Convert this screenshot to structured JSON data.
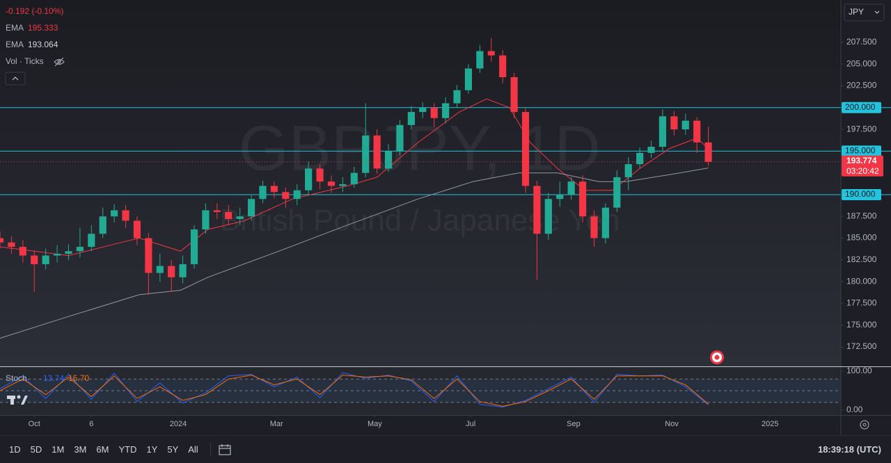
{
  "chart_data": [
    {
      "type": "candlestick",
      "title": "GBPJPY, 1D",
      "subtitle": "British Pound / Japanese Yen",
      "change": "-0.192 (-0.10%)",
      "volume_label": "Vol · Ticks",
      "currency": "JPY",
      "up_color": "#22ab94",
      "down_color": "#f23645",
      "x": [
        0,
        5,
        10,
        15,
        20,
        25,
        30,
        35,
        40,
        45,
        50,
        55,
        60,
        65,
        70,
        75,
        80,
        85,
        90,
        95,
        100,
        105,
        110,
        115,
        120,
        125,
        130,
        135,
        140,
        145,
        150,
        155,
        160,
        165,
        170,
        175,
        180,
        185,
        190,
        195,
        200,
        205,
        210,
        215,
        220,
        225,
        230,
        235,
        240,
        245,
        250,
        255,
        260,
        265,
        270,
        275,
        280,
        285,
        290,
        295,
        300,
        305,
        310
      ],
      "open": [
        185,
        184.5,
        184,
        183,
        182,
        183,
        183.2,
        183.5,
        184,
        185.5,
        187.5,
        188.2,
        187,
        185,
        181,
        181.8,
        180.5,
        182,
        186,
        188.2,
        188,
        187.2,
        187.5,
        189.5,
        191,
        190.3,
        189.5,
        190.5,
        193,
        191.5,
        191,
        191.2,
        192.5,
        196.8,
        193,
        195,
        198,
        199.5,
        200,
        198.8,
        200.5,
        202,
        204.5,
        206.5,
        206,
        203.5,
        199.5,
        191,
        185.5,
        189.5,
        190,
        191.5,
        187.5,
        185,
        188.5,
        192,
        193.5,
        194.8,
        195.5,
        199,
        197.5,
        198.5,
        196
      ],
      "high": [
        185.8,
        185.2,
        184.8,
        183.6,
        183.8,
        184.2,
        184.3,
        186.2,
        186.5,
        188.5,
        188.9,
        188.8,
        187.5,
        185.6,
        183.2,
        182.5,
        183,
        186.5,
        189,
        189,
        188.8,
        188.5,
        190,
        191.6,
        191.5,
        190.8,
        191.2,
        193.8,
        193.5,
        192.2,
        192,
        193.2,
        200.5,
        197.5,
        195.8,
        198.6,
        200.2,
        200.6,
        200.5,
        201.2,
        202.6,
        205,
        207.2,
        208,
        206.6,
        204,
        200,
        191.6,
        190.2,
        191.5,
        192,
        192.2,
        188.2,
        189,
        192.8,
        194.3,
        195.4,
        196.2,
        199.8,
        199.6,
        199.3,
        198.9,
        197.8
      ],
      "low": [
        183.8,
        183.2,
        182.2,
        178.8,
        181.4,
        182.2,
        182.5,
        182.8,
        183.5,
        185,
        186.8,
        186.2,
        184.2,
        178.5,
        180,
        178.8,
        179.8,
        181.5,
        185.5,
        187.2,
        186.5,
        186.5,
        187,
        189,
        189.6,
        188.5,
        188.8,
        190,
        190.6,
        190.2,
        190.3,
        190.8,
        192,
        192.4,
        192.6,
        194.5,
        197.5,
        198.8,
        197.8,
        198.2,
        200,
        201.6,
        204,
        205.3,
        202.8,
        198.8,
        190.2,
        180.2,
        184.8,
        188.6,
        189.4,
        186.8,
        184,
        184.4,
        188,
        190.5,
        193,
        194.2,
        195,
        196.8,
        196.9,
        194.8,
        193.3
      ],
      "close": [
        184.5,
        184,
        183,
        182,
        183,
        183.2,
        183.5,
        184,
        185.5,
        187.5,
        188.2,
        187,
        185,
        181,
        181.8,
        180.5,
        182,
        186,
        188.2,
        188,
        187.2,
        187.5,
        189.5,
        191,
        190.3,
        189.5,
        190.5,
        193,
        191.5,
        191,
        191.2,
        192.5,
        196.8,
        193,
        195,
        198,
        199.5,
        200,
        198.8,
        200.5,
        202,
        204.5,
        206.5,
        206,
        203.5,
        199.5,
        191,
        185.5,
        189.5,
        190,
        191.5,
        187.5,
        185,
        188.5,
        192,
        193.5,
        194.8,
        195.5,
        199,
        197.5,
        198.5,
        196,
        193.774
      ],
      "overlays": [
        {
          "name": "EMA",
          "value": 195.333,
          "color": "#f23645",
          "x": [
            0,
            30,
            53,
            61,
            79,
            91,
            107,
            128,
            152,
            165,
            183,
            201,
            213,
            223,
            232,
            244,
            256,
            268,
            280,
            293,
            305,
            310
          ],
          "values": [
            184,
            183,
            184.5,
            185,
            183.5,
            186,
            187,
            189.5,
            191,
            192,
            196,
            199.5,
            201,
            200,
            196,
            193,
            190.5,
            190.5,
            193,
            195.3,
            196.5,
            195.3
          ]
        },
        {
          "name": "EMA",
          "value": 193.064,
          "color": "#9598a1",
          "x": [
            0,
            30,
            61,
            79,
            91,
            122,
            152,
            183,
            207,
            227,
            244,
            262,
            274,
            293,
            310
          ],
          "values": [
            173.5,
            176,
            178.5,
            179,
            180.5,
            183.5,
            186.5,
            189.5,
            191.5,
            192.5,
            192.5,
            191.5,
            191.5,
            192.3,
            193.064
          ]
        }
      ],
      "levels": [
        {
          "value": 200,
          "label": "200.000"
        },
        {
          "value": 195,
          "label": "195.000"
        },
        {
          "value": 190,
          "label": "190.000"
        }
      ],
      "level_color": "#22c3dd",
      "last_price": 193.774,
      "countdown": "03:20:42",
      "xlim": [
        0,
        368
      ],
      "xticks": [
        {
          "value": 15,
          "label": "Oct"
        },
        {
          "value": 40,
          "label": "6"
        },
        {
          "value": 78,
          "label": "2024"
        },
        {
          "value": 121,
          "label": "Mar"
        },
        {
          "value": 164,
          "label": "May"
        },
        {
          "value": 206,
          "label": "Jul"
        },
        {
          "value": 251,
          "label": "Sep"
        },
        {
          "value": 294,
          "label": "Nov"
        },
        {
          "value": 337,
          "label": "2025"
        }
      ],
      "ylim": [
        170.26,
        212.37
      ],
      "yticks": [
        {
          "value": 172.5,
          "label": "172.500"
        },
        {
          "value": 175,
          "label": "175.000"
        },
        {
          "value": 177.5,
          "label": "177.500"
        },
        {
          "value": 180,
          "label": "180.000"
        },
        {
          "value": 182.5,
          "label": "182.500"
        },
        {
          "value": 185,
          "label": "185.000"
        },
        {
          "value": 187.5,
          "label": "187.500"
        },
        {
          "value": 190,
          "label": "190.000"
        },
        {
          "value": 192.5,
          "label": "192.500"
        },
        {
          "value": 195,
          "label": "195.000"
        },
        {
          "value": 197.5,
          "label": "197.500"
        },
        {
          "value": 200,
          "label": "200.000"
        },
        {
          "value": 202.5,
          "label": "202.500"
        },
        {
          "value": 205,
          "label": "205.000"
        },
        {
          "value": 207.5,
          "label": "207.500"
        }
      ],
      "ranges": [
        "1D",
        "5D",
        "1M",
        "3M",
        "6M",
        "YTD",
        "1Y",
        "5Y",
        "All"
      ],
      "clock": "18:39:18 (UTC)"
    },
    {
      "type": "line",
      "title": "Stoch",
      "x": [
        0,
        10,
        20,
        30,
        40,
        50,
        60,
        70,
        80,
        90,
        100,
        110,
        120,
        130,
        140,
        150,
        160,
        170,
        180,
        190,
        200,
        210,
        220,
        230,
        240,
        250,
        260,
        270,
        280,
        290,
        300,
        310
      ],
      "series": [
        {
          "color": "#2962ff",
          "values": [
            55,
            88,
            30,
            92,
            28,
            95,
            22,
            70,
            18,
            45,
            88,
            92,
            60,
            85,
            32,
            96,
            82,
            90,
            75,
            22,
            88,
            15,
            8,
            25,
            55,
            85,
            20,
            92,
            88,
            90,
            60,
            13.74
          ]
        },
        {
          "color": "#ff6d00",
          "values": [
            50,
            80,
            40,
            85,
            35,
            88,
            30,
            60,
            25,
            40,
            80,
            90,
            65,
            80,
            40,
            90,
            85,
            88,
            78,
            30,
            80,
            22,
            10,
            22,
            50,
            80,
            28,
            88,
            88,
            88,
            65,
            15.7
          ],
          "value_labels": [
            null,
            null,
            null,
            null,
            null,
            null,
            null,
            null,
            null,
            null,
            null,
            null,
            null,
            null,
            null,
            null,
            null,
            null,
            null,
            null,
            null,
            null,
            null,
            null,
            null,
            null,
            null,
            null,
            null,
            null,
            null,
            "15.70"
          ]
        }
      ],
      "levels": [
        80,
        50,
        20
      ],
      "xlim": [
        0,
        368
      ],
      "ylim": [
        -12.5,
        110.7
      ],
      "yticks": [
        {
          "value": 100,
          "label": "100.00"
        },
        {
          "value": 0,
          "label": "0.00"
        }
      ]
    }
  ]
}
